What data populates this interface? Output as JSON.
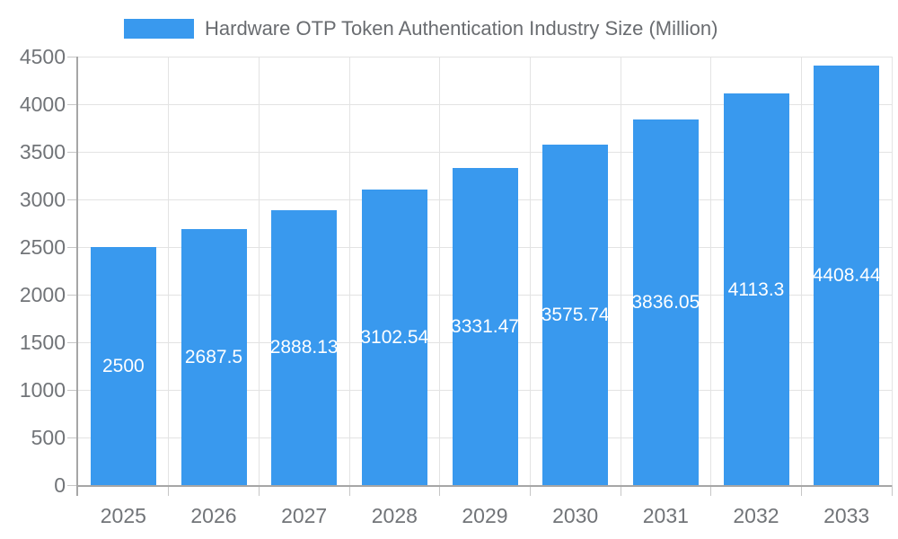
{
  "chart_data": {
    "type": "bar",
    "title": "Hardware OTP Token Authentication Industry Size (Million)",
    "categories": [
      "2025",
      "2026",
      "2027",
      "2028",
      "2029",
      "2030",
      "2031",
      "2032",
      "2033"
    ],
    "values": [
      2500,
      2687.5,
      2888.13,
      3102.54,
      3331.47,
      3575.74,
      3836.05,
      4113.3,
      4408.44
    ],
    "value_labels": [
      "2500",
      "2687.5",
      "2888.13",
      "3102.54",
      "3331.47",
      "3575.74",
      "3836.05",
      "4113.3",
      "4408.44"
    ],
    "xlabel": "",
    "ylabel": "",
    "ylim": [
      0,
      4500
    ],
    "ytick_step": 500,
    "yticks": [
      0,
      500,
      1000,
      1500,
      2000,
      2500,
      3000,
      3500,
      4000,
      4500
    ],
    "grid": true,
    "legend_position": "top",
    "legend_entries": [
      "Hardware OTP Token Authentication Industry Size (Million)"
    ],
    "colors": {
      "bar": "#3999EE",
      "grid": "#e3e3e3",
      "axis_line": "#a6a6a6",
      "tick_mark": "#c6c6c6",
      "tick_text": "#717478",
      "legend_text": "#696c70",
      "value_label_text": "#ffffff",
      "background": "#ffffff"
    }
  }
}
